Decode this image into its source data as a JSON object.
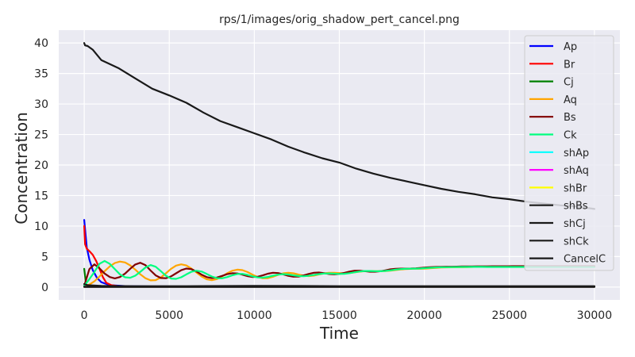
{
  "chart_data": {
    "type": "line",
    "title": "rps/1/images/orig_shadow_pert_cancel.png",
    "xlabel": "Time",
    "ylabel": "Concentration",
    "xlim": [
      -1500,
      31500
    ],
    "ylim": [
      -2.1,
      42.1
    ],
    "xticks": [
      0,
      5000,
      10000,
      15000,
      20000,
      25000,
      30000
    ],
    "yticks": [
      0,
      5,
      10,
      15,
      20,
      25,
      30,
      35,
      40
    ],
    "grid": true,
    "legend_position": "upper right",
    "series": [
      {
        "name": "Ap",
        "color": "#0000ff",
        "x": [
          0,
          150,
          300,
          500,
          750,
          1000,
          1500,
          2500,
          4000,
          6000,
          9000,
          12000,
          15000,
          18000,
          21000,
          24000,
          27000,
          30000
        ],
        "y": [
          11,
          6.5,
          4.5,
          2.8,
          1.5,
          0.8,
          0.3,
          0.15,
          0.1,
          0.1,
          0.1,
          0.1,
          0.1,
          0.1,
          0.1,
          0.1,
          0.1,
          0.1
        ]
      },
      {
        "name": "Br",
        "color": "#ff0000",
        "x": [
          0,
          50,
          150,
          300,
          500,
          700,
          900,
          1100,
          1300,
          1600,
          2000,
          2500,
          3500,
          5000,
          8000,
          12000,
          16000,
          20000,
          25000,
          30000
        ],
        "y": [
          10,
          7.0,
          6.3,
          5.9,
          5.3,
          4.3,
          3.0,
          1.6,
          0.7,
          0.3,
          0.15,
          0.1,
          0.1,
          0.1,
          0.1,
          0.1,
          0.1,
          0.1,
          0.1,
          0.1
        ]
      },
      {
        "name": "Cj",
        "color": "#008000",
        "x": [
          0,
          50,
          100,
          200,
          300,
          500,
          800,
          1500,
          3000,
          6000,
          10000,
          15000,
          20000,
          25000,
          30000
        ],
        "y": [
          3.0,
          1.8,
          0.5,
          0.15,
          0.1,
          0.1,
          0.1,
          0.1,
          0.1,
          0.1,
          0.1,
          0.1,
          0.1,
          0.1,
          0.1
        ]
      },
      {
        "name": "Aq",
        "color": "#ffa500",
        "x": [
          0,
          300,
          600,
          900,
          1200,
          1500,
          1800,
          2100,
          2400,
          2700,
          3000,
          3300,
          3600,
          3900,
          4200,
          4500,
          4800,
          5100,
          5400,
          5700,
          6000,
          6300,
          6600,
          6900,
          7200,
          7500,
          7800,
          8100,
          8400,
          8700,
          9000,
          9300,
          9600,
          9900,
          10200,
          10500,
          10800,
          11100,
          11400,
          11700,
          12000,
          12300,
          12600,
          12900,
          13200,
          13500,
          13800,
          14100,
          14400,
          14700,
          15000,
          15300,
          15600,
          15900,
          16200,
          16500,
          16800,
          17100,
          17400,
          17700,
          18000,
          18300,
          18600,
          18900,
          19200,
          19500,
          19800,
          20100,
          20400,
          20700,
          21000,
          21300,
          21600,
          21900,
          22200,
          22500,
          22800,
          23100,
          23400,
          23700,
          24000,
          24300,
          24600,
          24900,
          25200,
          25500,
          25800,
          26100,
          26400,
          26700,
          27000,
          27300,
          27600,
          27900,
          28200,
          28500,
          28800,
          29100,
          29400,
          29700,
          30000
        ],
        "y": [
          0.2,
          0.41,
          0.96,
          1.74,
          2.6,
          3.39,
          3.95,
          4.18,
          4.03,
          3.56,
          2.86,
          2.09,
          1.45,
          1.1,
          1.14,
          1.57,
          2.26,
          2.98,
          3.52,
          3.72,
          3.54,
          3.04,
          2.38,
          1.73,
          1.28,
          1.13,
          1.31,
          1.74,
          2.25,
          2.67,
          2.85,
          2.77,
          2.46,
          2.04,
          1.65,
          1.44,
          1.46,
          1.69,
          2.0,
          2.25,
          2.34,
          2.25,
          2.05,
          1.87,
          1.8,
          1.88,
          2.07,
          2.25,
          2.35,
          2.34,
          2.29,
          2.26,
          2.31,
          2.41,
          2.53,
          2.61,
          2.63,
          2.61,
          2.6,
          2.62,
          2.69,
          2.79,
          2.88,
          2.95,
          2.98,
          2.99,
          3.0,
          3.04,
          3.1,
          3.15,
          3.2,
          3.23,
          3.24,
          3.25,
          3.26,
          3.28,
          3.3,
          3.33,
          3.34,
          3.35,
          3.35,
          3.35,
          3.35,
          3.35,
          3.36,
          3.37,
          3.38,
          3.38,
          3.38,
          3.38,
          3.38,
          3.37,
          3.37,
          3.37,
          3.38,
          3.38,
          3.38,
          3.38,
          3.38,
          3.38,
          3.38
        ]
      },
      {
        "name": "Bs",
        "color": "#800000",
        "x": [
          0,
          300,
          600,
          900,
          1200,
          1500,
          1800,
          2100,
          2400,
          2700,
          3000,
          3300,
          3600,
          3900,
          4200,
          4500,
          4800,
          5100,
          5400,
          5700,
          6000,
          6300,
          6600,
          6900,
          7200,
          7500,
          7800,
          8100,
          8400,
          8700,
          9000,
          9300,
          9600,
          9900,
          10200,
          10500,
          10800,
          11100,
          11400,
          11700,
          12000,
          12300,
          12600,
          12900,
          13200,
          13500,
          13800,
          14100,
          14400,
          14700,
          15000,
          15300,
          15600,
          15900,
          16200,
          16500,
          16800,
          17100,
          17400,
          17700,
          18000,
          18300,
          18600,
          18900,
          19200,
          19500,
          19800,
          20100,
          20400,
          20700,
          21000,
          21300,
          21600,
          21900,
          22200,
          22500,
          22800,
          23100,
          23400,
          23700,
          24000,
          24300,
          24600,
          24900,
          25200,
          25500,
          25800,
          26100,
          26400,
          26700,
          27000,
          27300,
          27600,
          27900,
          28200,
          28500,
          28800,
          29100,
          29400,
          29700,
          30000
        ],
        "y": [
          0.2,
          2.95,
          3.72,
          3.06,
          2.22,
          1.64,
          1.42,
          1.64,
          2.22,
          2.99,
          3.7,
          3.98,
          3.58,
          2.71,
          1.92,
          1.49,
          1.45,
          1.75,
          2.26,
          2.76,
          3.03,
          2.95,
          2.56,
          2.04,
          1.63,
          1.47,
          1.56,
          1.82,
          2.11,
          2.27,
          2.23,
          2.04,
          1.79,
          1.64,
          1.69,
          1.92,
          2.19,
          2.34,
          2.29,
          2.08,
          1.84,
          1.69,
          1.71,
          1.9,
          2.15,
          2.34,
          2.38,
          2.28,
          2.14,
          2.08,
          2.15,
          2.33,
          2.54,
          2.68,
          2.68,
          2.6,
          2.52,
          2.51,
          2.59,
          2.74,
          2.9,
          2.99,
          3.02,
          3.02,
          3.03,
          3.07,
          3.14,
          3.22,
          3.27,
          3.3,
          3.31,
          3.33,
          3.34,
          3.35,
          3.37,
          3.38,
          3.39,
          3.4,
          3.4,
          3.4,
          3.41,
          3.41,
          3.41,
          3.41,
          3.42,
          3.42,
          3.42,
          3.42,
          3.42,
          3.42,
          3.42,
          3.42,
          3.42,
          3.42,
          3.42,
          3.42,
          3.42,
          3.42,
          3.42,
          3.42,
          3.42
        ]
      },
      {
        "name": "Ck",
        "color": "#00ff7f",
        "x": [
          0,
          300,
          600,
          900,
          1200,
          1500,
          1800,
          2100,
          2400,
          2700,
          3000,
          3300,
          3600,
          3900,
          4200,
          4500,
          4800,
          5100,
          5400,
          5700,
          6000,
          6300,
          6600,
          6900,
          7200,
          7500,
          7800,
          8100,
          8400,
          8700,
          9000,
          9300,
          9600,
          9900,
          10200,
          10500,
          10800,
          11100,
          11400,
          11700,
          12000,
          12300,
          12600,
          12900,
          13200,
          13500,
          13800,
          14100,
          14400,
          14700,
          15000,
          15300,
          15600,
          15900,
          16200,
          16500,
          16800,
          17100,
          17400,
          17700,
          18000,
          18300,
          18600,
          18900,
          19200,
          19500,
          19800,
          20100,
          20400,
          20700,
          21000,
          21300,
          21600,
          21900,
          22200,
          22500,
          22800,
          23100,
          23400,
          23700,
          24000,
          24300,
          24600,
          24900,
          25200,
          25500,
          25800,
          26100,
          26400,
          26700,
          27000,
          27300,
          27600,
          27900,
          28200,
          28500,
          28800,
          29100,
          29400,
          29700,
          30000
        ],
        "y": [
          0.2,
          1.3,
          2.49,
          3.81,
          4.28,
          3.8,
          2.93,
          2.08,
          1.6,
          1.53,
          1.86,
          2.5,
          3.22,
          3.61,
          3.33,
          2.62,
          1.87,
          1.4,
          1.34,
          1.61,
          2.07,
          2.5,
          2.68,
          2.54,
          2.15,
          1.73,
          1.46,
          1.44,
          1.63,
          1.92,
          2.14,
          2.17,
          2.0,
          1.76,
          1.58,
          1.54,
          1.66,
          1.86,
          2.04,
          2.12,
          2.06,
          1.92,
          1.81,
          1.78,
          1.85,
          1.98,
          2.12,
          2.22,
          2.24,
          2.19,
          2.15,
          2.18,
          2.28,
          2.42,
          2.55,
          2.63,
          2.63,
          2.6,
          2.59,
          2.64,
          2.74,
          2.85,
          2.94,
          2.99,
          3.01,
          3.02,
          3.05,
          3.11,
          3.17,
          3.22,
          3.25,
          3.26,
          3.27,
          3.28,
          3.29,
          3.3,
          3.31,
          3.31,
          3.31,
          3.3,
          3.3,
          3.3,
          3.3,
          3.3,
          3.3,
          3.3,
          3.29,
          3.29,
          3.28,
          3.28,
          3.28,
          3.28,
          3.28,
          3.28,
          3.28,
          3.28,
          3.28,
          3.28,
          3.28,
          3.28,
          3.28
        ]
      },
      {
        "name": "shAp",
        "color": "#00ffff",
        "x": [
          0,
          30000
        ],
        "y": [
          0.05,
          0.05
        ]
      },
      {
        "name": "shAq",
        "color": "#ff00ff",
        "x": [
          0,
          30000
        ],
        "y": [
          0.05,
          0.05
        ]
      },
      {
        "name": "shBr",
        "color": "#ffff00",
        "x": [
          0,
          30000
        ],
        "y": [
          0.05,
          0.05
        ]
      },
      {
        "name": "shBs",
        "color": "#191919",
        "x": [
          0,
          30000
        ],
        "y": [
          0.05,
          0.05
        ]
      },
      {
        "name": "shCj",
        "color": "#191919",
        "x": [
          0,
          30000
        ],
        "y": [
          0.05,
          0.05
        ]
      },
      {
        "name": "shCk",
        "color": "#191919",
        "x": [
          0,
          30000
        ],
        "y": [
          0.05,
          0.05
        ]
      },
      {
        "name": "CancelC",
        "color": "#191919",
        "x": [
          0,
          50,
          200,
          500,
          1000,
          2000,
          3000,
          4000,
          5000,
          6000,
          7000,
          8000,
          9000,
          10000,
          11000,
          12000,
          13000,
          14000,
          15000,
          16000,
          17000,
          18000,
          19000,
          20000,
          21000,
          22000,
          23000,
          24000,
          25000,
          26000,
          27000,
          28000,
          29000,
          30000
        ],
        "y": [
          40.0,
          39.6,
          39.5,
          38.9,
          37.2,
          35.9,
          34.2,
          32.5,
          31.4,
          30.2,
          28.6,
          27.2,
          26.2,
          25.2,
          24.2,
          23.0,
          22.0,
          21.1,
          20.4,
          19.4,
          18.6,
          17.9,
          17.3,
          16.7,
          16.1,
          15.6,
          15.2,
          14.7,
          14.4,
          14.0,
          13.7,
          13.4,
          13.2,
          12.8
        ]
      },
      {
        "name": "",
        "color": "#191919",
        "x": [
          0,
          200,
          1000,
          3000,
          6000,
          10000,
          15000,
          20000,
          25000,
          30000
        ],
        "y": [
          0.5,
          0.3,
          0.2,
          0.15,
          0.15,
          0.2,
          0.15,
          0.15,
          0.15,
          0.15
        ]
      }
    ]
  }
}
